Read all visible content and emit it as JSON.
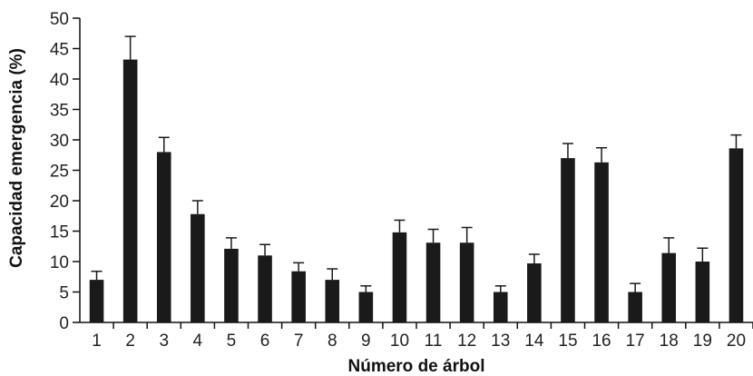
{
  "chart_data": {
    "type": "bar",
    "title": "",
    "xlabel": "Número de árbol",
    "ylabel": "Capacidad emergencia (%)",
    "ylim": [
      0,
      50
    ],
    "yticks": [
      0,
      5,
      10,
      15,
      20,
      25,
      30,
      35,
      40,
      45,
      50
    ],
    "grid": false,
    "categories": [
      "1",
      "2",
      "3",
      "4",
      "5",
      "6",
      "7",
      "8",
      "9",
      "10",
      "11",
      "12",
      "13",
      "14",
      "15",
      "16",
      "17",
      "18",
      "19",
      "20"
    ],
    "values": [
      7.0,
      43.2,
      28.0,
      17.8,
      12.1,
      11.0,
      8.4,
      7.0,
      5.0,
      14.8,
      13.1,
      13.1,
      5.0,
      9.7,
      27.0,
      26.3,
      5.0,
      11.4,
      10.0,
      28.6
    ],
    "errors": [
      1.4,
      3.8,
      2.4,
      2.2,
      1.8,
      1.8,
      1.4,
      1.8,
      1.0,
      2.0,
      2.2,
      2.5,
      1.0,
      1.5,
      2.4,
      2.4,
      1.4,
      2.5,
      2.2,
      2.2
    ],
    "bar_color": "#1a1a1a"
  }
}
